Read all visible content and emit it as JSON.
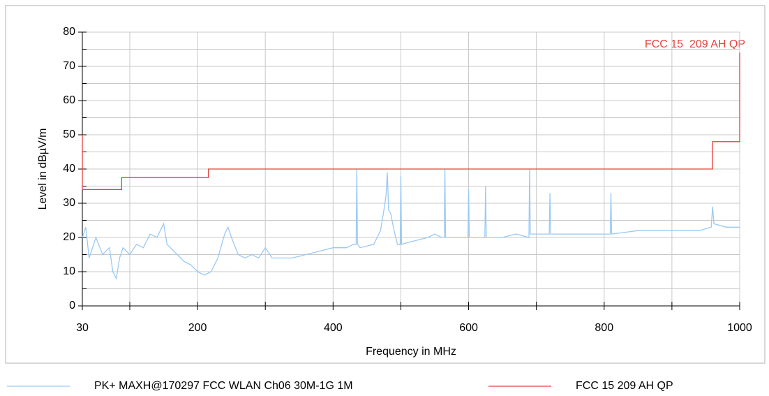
{
  "chart_data": {
    "type": "line",
    "xlabel": "Frequency in MHz",
    "ylabel": "Level in dBµV/m",
    "xlim": [
      30,
      1000
    ],
    "xticks": [
      30,
      200,
      400,
      600,
      800,
      1000
    ],
    "xminor": [
      100,
      300,
      500,
      700,
      900
    ],
    "ylim": [
      0,
      80
    ],
    "yticks": [
      0,
      10,
      20,
      30,
      40,
      50,
      60,
      70,
      80
    ],
    "yminor": [
      5,
      15,
      25,
      35,
      45,
      55,
      65,
      75
    ],
    "grid": true,
    "annotation": "FCC 15_209 AH QP",
    "series": [
      {
        "name": "PK+ MAXH@170297 FCC WLAN Ch06 30M-1G 1M",
        "color": "#99c9f5",
        "x": [
          30,
          35,
          40,
          50,
          60,
          70,
          75,
          80,
          85,
          90,
          100,
          110,
          120,
          130,
          140,
          150,
          155,
          160,
          170,
          180,
          190,
          200,
          210,
          220,
          230,
          240,
          245,
          250,
          260,
          270,
          280,
          290,
          300,
          310,
          320,
          340,
          360,
          380,
          400,
          420,
          430,
          434,
          435,
          436,
          440,
          460,
          470,
          475,
          478,
          480,
          482,
          485,
          490,
          495,
          499,
          500,
          501,
          520,
          540,
          550,
          560,
          564,
          565,
          566,
          580,
          599,
          600,
          601,
          624,
          625,
          626,
          650,
          670,
          689,
          690,
          691,
          719,
          720,
          721,
          750,
          780,
          809,
          810,
          811,
          850,
          900,
          940,
          958,
          960,
          962,
          980,
          1000
        ],
        "values": [
          20,
          23,
          14,
          20,
          15,
          17,
          10,
          8,
          14,
          17,
          15,
          18,
          17,
          21,
          20,
          24,
          18,
          17,
          15,
          13,
          12,
          10,
          9,
          10,
          14,
          21,
          23,
          20,
          15,
          14,
          15,
          14,
          17,
          14,
          14,
          14,
          15,
          16,
          17,
          17,
          18,
          18,
          40,
          18,
          17,
          18,
          22,
          28,
          32,
          39,
          28,
          27,
          22,
          18,
          18,
          38,
          18,
          19,
          20,
          21,
          20,
          20,
          40,
          20,
          20,
          20,
          34,
          20,
          20,
          35,
          20,
          20,
          21,
          20,
          40,
          21,
          21,
          33,
          21,
          21,
          21,
          21,
          33,
          21,
          22,
          22,
          22,
          23,
          29,
          24,
          23,
          23
        ]
      },
      {
        "name": "FCC 15 209 AH QP",
        "color": "#e8403c",
        "x": [
          30,
          30,
          88,
          88,
          216,
          216,
          960,
          960,
          1000,
          1000
        ],
        "values": [
          50,
          34,
          34,
          37.5,
          37.5,
          40,
          40,
          48,
          48,
          74
        ]
      }
    ]
  }
}
